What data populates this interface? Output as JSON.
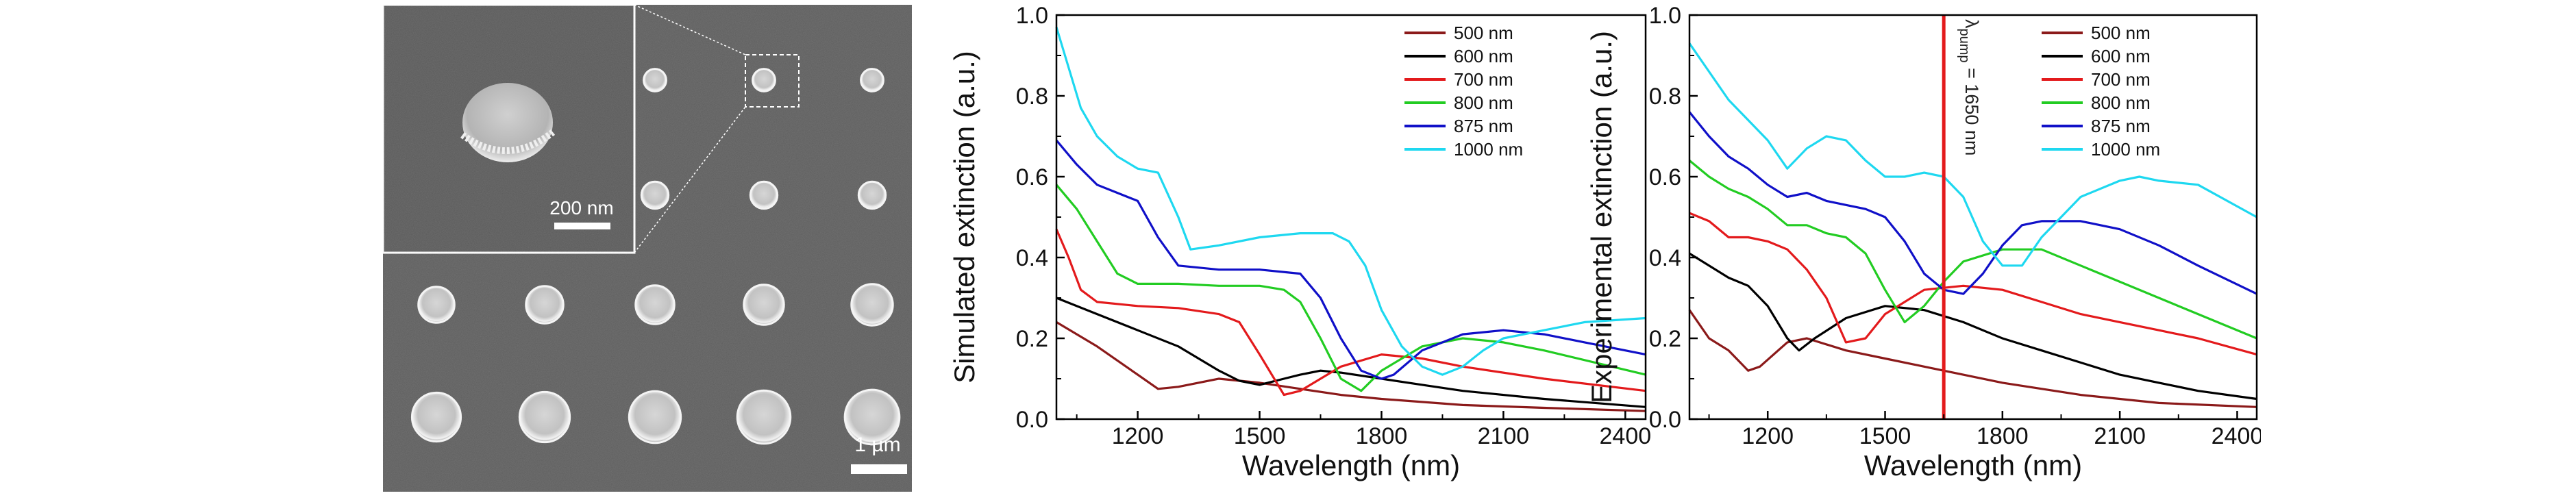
{
  "sem_panel": {
    "inset_scale_label": "200 nm",
    "main_scale_label": "1 µm",
    "sizes_um": [
      0.5,
      0.6,
      0.7,
      0.8,
      0.875,
      1.0
    ]
  },
  "chart_data": [
    {
      "type": "line",
      "xlabel": "Wavelength (nm)",
      "ylabel": "Simulated extinction (a.u.)",
      "xlim": [
        1000,
        2450
      ],
      "ylim": [
        0,
        1.0
      ],
      "xticks": [
        1200,
        1500,
        1800,
        2100,
        2400
      ],
      "yticks": [
        0.0,
        0.2,
        0.4,
        0.6,
        0.8,
        1.0
      ],
      "legend_position": "top-right",
      "series": [
        {
          "name": "500 nm",
          "color": "#8b1a1a",
          "x": [
            1000,
            1100,
            1200,
            1250,
            1300,
            1400,
            1500,
            1600,
            1700,
            1800,
            2000,
            2200,
            2450
          ],
          "y": [
            0.24,
            0.18,
            0.11,
            0.075,
            0.08,
            0.1,
            0.09,
            0.075,
            0.06,
            0.05,
            0.035,
            0.028,
            0.02
          ]
        },
        {
          "name": "600 nm",
          "color": "#000000",
          "x": [
            1000,
            1100,
            1200,
            1300,
            1400,
            1450,
            1500,
            1560,
            1600,
            1650,
            1700,
            1800,
            1900,
            2000,
            2200,
            2450
          ],
          "y": [
            0.3,
            0.26,
            0.22,
            0.18,
            0.12,
            0.095,
            0.085,
            0.1,
            0.11,
            0.12,
            0.115,
            0.1,
            0.085,
            0.07,
            0.05,
            0.03
          ]
        },
        {
          "name": "700 nm",
          "color": "#e31a1c",
          "x": [
            1000,
            1030,
            1060,
            1100,
            1200,
            1300,
            1400,
            1450,
            1500,
            1560,
            1600,
            1650,
            1700,
            1800,
            1900,
            2000,
            2200,
            2450
          ],
          "y": [
            0.47,
            0.4,
            0.32,
            0.29,
            0.28,
            0.275,
            0.26,
            0.24,
            0.16,
            0.06,
            0.07,
            0.1,
            0.13,
            0.16,
            0.15,
            0.13,
            0.1,
            0.07
          ]
        },
        {
          "name": "800 nm",
          "color": "#22cc22",
          "x": [
            1000,
            1050,
            1100,
            1150,
            1200,
            1300,
            1400,
            1500,
            1560,
            1600,
            1650,
            1700,
            1750,
            1800,
            1900,
            2000,
            2100,
            2200,
            2450
          ],
          "y": [
            0.58,
            0.52,
            0.44,
            0.36,
            0.335,
            0.335,
            0.33,
            0.33,
            0.32,
            0.29,
            0.2,
            0.1,
            0.07,
            0.12,
            0.18,
            0.2,
            0.19,
            0.17,
            0.11
          ]
        },
        {
          "name": "875 nm",
          "color": "#1010c8",
          "x": [
            1000,
            1050,
            1100,
            1150,
            1200,
            1250,
            1300,
            1400,
            1500,
            1600,
            1650,
            1700,
            1750,
            1800,
            1830,
            1900,
            2000,
            2100,
            2200,
            2300,
            2450
          ],
          "y": [
            0.69,
            0.63,
            0.58,
            0.56,
            0.54,
            0.45,
            0.38,
            0.37,
            0.37,
            0.36,
            0.3,
            0.2,
            0.12,
            0.1,
            0.11,
            0.17,
            0.21,
            0.22,
            0.21,
            0.19,
            0.16
          ]
        },
        {
          "name": "1000 nm",
          "color": "#1ed8f0",
          "x": [
            1000,
            1030,
            1060,
            1100,
            1150,
            1200,
            1250,
            1300,
            1330,
            1400,
            1500,
            1600,
            1680,
            1720,
            1760,
            1800,
            1850,
            1900,
            1950,
            2000,
            2050,
            2100,
            2200,
            2300,
            2450
          ],
          "y": [
            0.97,
            0.87,
            0.77,
            0.7,
            0.65,
            0.62,
            0.61,
            0.5,
            0.42,
            0.43,
            0.45,
            0.46,
            0.46,
            0.44,
            0.38,
            0.27,
            0.18,
            0.13,
            0.11,
            0.13,
            0.17,
            0.2,
            0.22,
            0.24,
            0.25
          ]
        }
      ]
    },
    {
      "type": "line",
      "xlabel": "Wavelength (nm)",
      "ylabel": "Experimental extinction (a.u.)",
      "xlim": [
        1000,
        2450
      ],
      "ylim": [
        0,
        1.0
      ],
      "xticks": [
        1200,
        1500,
        1800,
        2100,
        2400
      ],
      "yticks": [
        0.0,
        0.2,
        0.4,
        0.6,
        0.8,
        1.0
      ],
      "legend_position": "top-right",
      "annotation": {
        "text_prefix": "λ",
        "text_sub": "pump",
        "text_suffix": " = 1650 nm",
        "x": 1650,
        "color": "#e31a1c"
      },
      "series": [
        {
          "name": "500 nm",
          "color": "#8b1a1a",
          "x": [
            1000,
            1050,
            1100,
            1150,
            1180,
            1250,
            1300,
            1400,
            1500,
            1600,
            1800,
            2000,
            2200,
            2450
          ],
          "y": [
            0.27,
            0.2,
            0.17,
            0.12,
            0.13,
            0.19,
            0.2,
            0.17,
            0.15,
            0.13,
            0.09,
            0.06,
            0.04,
            0.03
          ]
        },
        {
          "name": "600 nm",
          "color": "#000000",
          "x": [
            1000,
            1100,
            1150,
            1200,
            1250,
            1280,
            1320,
            1400,
            1500,
            1600,
            1700,
            1800,
            1900,
            2000,
            2100,
            2200,
            2300,
            2450
          ],
          "y": [
            0.41,
            0.35,
            0.33,
            0.28,
            0.2,
            0.17,
            0.2,
            0.25,
            0.28,
            0.27,
            0.24,
            0.2,
            0.17,
            0.14,
            0.11,
            0.09,
            0.07,
            0.05
          ]
        },
        {
          "name": "700 nm",
          "color": "#e31a1c",
          "x": [
            1000,
            1050,
            1100,
            1150,
            1200,
            1250,
            1300,
            1350,
            1400,
            1450,
            1500,
            1600,
            1700,
            1800,
            1900,
            2000,
            2100,
            2200,
            2300,
            2450
          ],
          "y": [
            0.51,
            0.49,
            0.45,
            0.45,
            0.44,
            0.42,
            0.37,
            0.3,
            0.19,
            0.2,
            0.26,
            0.32,
            0.33,
            0.32,
            0.29,
            0.26,
            0.24,
            0.22,
            0.2,
            0.16
          ]
        },
        {
          "name": "800 nm",
          "color": "#22cc22",
          "x": [
            1000,
            1050,
            1100,
            1150,
            1200,
            1250,
            1300,
            1350,
            1400,
            1450,
            1500,
            1550,
            1600,
            1650,
            1700,
            1800,
            1900,
            2000,
            2100,
            2200,
            2300,
            2450
          ],
          "y": [
            0.64,
            0.6,
            0.57,
            0.55,
            0.52,
            0.48,
            0.48,
            0.46,
            0.45,
            0.41,
            0.32,
            0.24,
            0.28,
            0.34,
            0.39,
            0.42,
            0.42,
            0.38,
            0.34,
            0.3,
            0.26,
            0.2
          ]
        },
        {
          "name": "875 nm",
          "color": "#1010c8",
          "x": [
            1000,
            1050,
            1100,
            1150,
            1200,
            1250,
            1300,
            1350,
            1400,
            1450,
            1500,
            1550,
            1600,
            1650,
            1700,
            1750,
            1800,
            1850,
            1900,
            2000,
            2100,
            2200,
            2300,
            2450
          ],
          "y": [
            0.76,
            0.7,
            0.65,
            0.62,
            0.58,
            0.55,
            0.56,
            0.54,
            0.53,
            0.52,
            0.5,
            0.44,
            0.36,
            0.32,
            0.31,
            0.36,
            0.43,
            0.48,
            0.49,
            0.49,
            0.47,
            0.43,
            0.38,
            0.31
          ]
        },
        {
          "name": "1000 nm",
          "color": "#1ed8f0",
          "x": [
            1000,
            1050,
            1100,
            1150,
            1200,
            1250,
            1300,
            1350,
            1400,
            1450,
            1500,
            1550,
            1600,
            1650,
            1700,
            1750,
            1800,
            1850,
            1900,
            2000,
            2100,
            2150,
            2200,
            2300,
            2450
          ],
          "y": [
            0.93,
            0.86,
            0.79,
            0.74,
            0.69,
            0.62,
            0.67,
            0.7,
            0.69,
            0.64,
            0.6,
            0.6,
            0.61,
            0.6,
            0.55,
            0.44,
            0.38,
            0.38,
            0.45,
            0.55,
            0.59,
            0.6,
            0.59,
            0.58,
            0.5
          ]
        }
      ]
    }
  ]
}
